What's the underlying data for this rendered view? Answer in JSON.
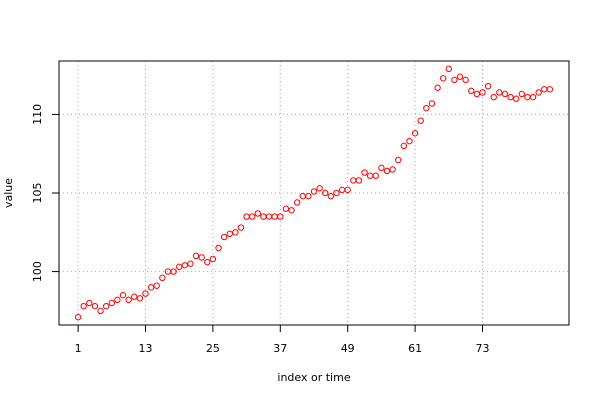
{
  "chart_data": {
    "type": "scatter",
    "xlabel": "index or time",
    "ylabel": "value",
    "x_ticks": [
      1,
      13,
      25,
      37,
      49,
      61,
      73
    ],
    "y_ticks": [
      100,
      105,
      110
    ],
    "xlim": [
      -2.4,
      88.4
    ],
    "ylim": [
      96.6,
      113.4
    ],
    "grid": true,
    "grid_style": "dotted",
    "point_color": "#ff0000",
    "axis_color": "#000000",
    "grid_color": "#a9a9a9",
    "marker": "open-circle",
    "series": [
      {
        "x": [
          1,
          2,
          3,
          4,
          5,
          6,
          7,
          8,
          9,
          10,
          11,
          12,
          13,
          14,
          15,
          16,
          17,
          18,
          19,
          20,
          21,
          22,
          23,
          24,
          25,
          26,
          27,
          28,
          29,
          30,
          31,
          32,
          33,
          34,
          35,
          36,
          37,
          38,
          39,
          40,
          41,
          42,
          43,
          44,
          45,
          46,
          47,
          48,
          49,
          50,
          51,
          52,
          53,
          54,
          55,
          56,
          57,
          58,
          59,
          60,
          61,
          62,
          63,
          64,
          65,
          66,
          67,
          68,
          69,
          70,
          71,
          72,
          73,
          74,
          75,
          76,
          77,
          78,
          79,
          80,
          81,
          82,
          83,
          84,
          85
        ],
        "y": [
          97.1,
          97.8,
          98.0,
          97.8,
          97.5,
          97.8,
          98.0,
          98.2,
          98.5,
          98.2,
          98.4,
          98.3,
          98.6,
          99.0,
          99.1,
          99.6,
          100.0,
          100.0,
          100.3,
          100.4,
          100.5,
          101.0,
          100.9,
          100.6,
          100.8,
          101.5,
          102.2,
          102.4,
          102.5,
          102.8,
          103.5,
          103.5,
          103.7,
          103.5,
          103.5,
          103.5,
          103.5,
          104.0,
          103.9,
          104.4,
          104.8,
          104.8,
          105.1,
          105.3,
          105.0,
          104.8,
          105.0,
          105.2,
          105.2,
          105.8,
          105.8,
          106.3,
          106.1,
          106.1,
          106.6,
          106.4,
          106.5,
          107.1,
          108.0,
          108.3,
          108.8,
          109.6,
          110.4,
          110.7,
          111.7,
          112.3,
          112.9,
          112.2,
          112.4,
          112.2,
          111.5,
          111.3,
          111.4,
          111.8,
          111.1,
          111.4,
          111.3,
          111.1,
          111.0,
          111.3,
          111.1,
          111.1,
          111.4,
          111.6,
          111.6
        ]
      }
    ]
  }
}
